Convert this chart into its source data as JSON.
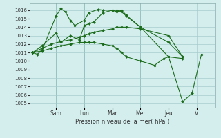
{
  "background_color": "#d4eeee",
  "grid_color": "#a8cccc",
  "line_color": "#1a6b1a",
  "marker_color": "#1a6b1a",
  "xlabel": "Pression niveau de la mer( hPa )",
  "ylim": [
    1004.5,
    1016.8
  ],
  "yticks": [
    1005,
    1006,
    1007,
    1008,
    1009,
    1010,
    1011,
    1012,
    1013,
    1014,
    1015,
    1016
  ],
  "day_labels": [
    "Sam",
    "Lun",
    "Mar",
    "Mer",
    "Jeu",
    "V"
  ],
  "day_positions": [
    2.5,
    5.5,
    8.5,
    11.5,
    14.5,
    17.5
  ],
  "xlim": [
    -0.3,
    19.5
  ],
  "series": [
    [
      1011.0,
      1010.8,
      1011.3,
      1015.3,
      1016.2,
      1015.8,
      1014.8,
      1014.2,
      1014.8,
      1015.7,
      1016.1,
      1016.0,
      1016.0,
      1015.8,
      1016.0,
      1015.4,
      1014.0,
      1012.2,
      1010.5
    ],
    [
      1011.0,
      1011.8,
      1013.3,
      1012.2,
      1013.0,
      1012.5,
      1014.2,
      1014.4,
      1014.6,
      1015.7,
      1016.0,
      1016.0,
      1015.8,
      1015.3,
      1014.0,
      1010.5,
      1010.3
    ],
    [
      1011.0,
      1011.5,
      1012.0,
      1012.3,
      1012.5,
      1012.8,
      1013.0,
      1013.2,
      1013.4,
      1013.6,
      1013.8,
      1014.0,
      1014.0,
      1014.0,
      1013.8,
      1013.0,
      1010.5
    ],
    [
      1011.0,
      1011.2,
      1011.5,
      1011.8,
      1012.0,
      1012.2,
      1012.2,
      1012.2,
      1012.2,
      1012.0,
      1011.8,
      1011.5,
      1011.0,
      1010.5,
      1010.0,
      1009.5,
      1010.3,
      1010.5,
      1005.2,
      1006.2,
      1010.8
    ]
  ],
  "series_x": [
    [
      0,
      0.5,
      1,
      2.5,
      3,
      3.5,
      4,
      4.5,
      5.5,
      6,
      7,
      7.5,
      8.5,
      9,
      9.5,
      10,
      11.5,
      14.5,
      16
    ],
    [
      0,
      1,
      2.5,
      3,
      4,
      5,
      5.5,
      6,
      6.5,
      7.5,
      8.5,
      9,
      9.5,
      10,
      11.5,
      14.5,
      16
    ],
    [
      0,
      1,
      2,
      3,
      4,
      5,
      5.5,
      6,
      6.5,
      7.5,
      8.5,
      9,
      9.5,
      10,
      11.5,
      14.5,
      16
    ],
    [
      0,
      1,
      2,
      3,
      4,
      5,
      5.5,
      6,
      6.5,
      7.5,
      8.5,
      9,
      9.5,
      10,
      11.5,
      13,
      14,
      14.5,
      16,
      17,
      18
    ]
  ],
  "vlines": [
    2.5,
    5.5,
    8.5,
    11.5,
    14.5,
    17.5
  ]
}
